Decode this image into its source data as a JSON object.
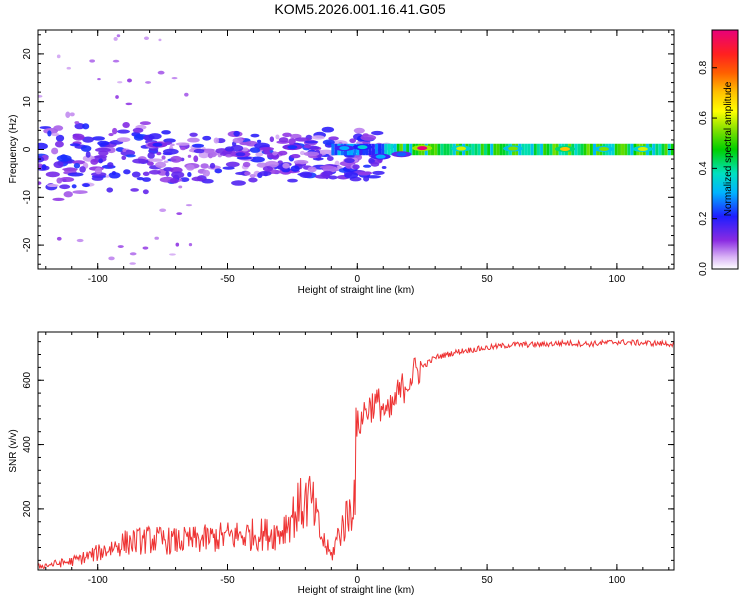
{
  "chart_data": {
    "title": "KOM5.2026.001.16.41.G05",
    "panels": [
      {
        "type": "heatmap",
        "xlabel": "Height of straight line (km)",
        "ylabel": "Frequency (Hz)",
        "xlim": [
          -123,
          122
        ],
        "ylim": [
          -25,
          25
        ],
        "xticks": [
          -100,
          -50,
          0,
          50,
          100
        ],
        "yticks": [
          -20,
          -10,
          0,
          10,
          20
        ],
        "colorbar": {
          "label": "Normalized spectral amplitude",
          "range": [
            0,
            0.95
          ],
          "ticks": [
            0.0,
            0.2,
            0.4,
            0.6,
            0.8
          ]
        },
        "blobs": [
          {
            "x": 25,
            "y": 0.3,
            "a": 0.95
          },
          {
            "x": 40,
            "y": 0.2,
            "a": 0.6
          },
          {
            "x": 60,
            "y": 0.2,
            "a": 0.55
          },
          {
            "x": 80,
            "y": 0.1,
            "a": 0.7
          },
          {
            "x": 95,
            "y": 0.1,
            "a": 0.55
          },
          {
            "x": 110,
            "y": 0.1,
            "a": 0.6
          },
          {
            "x": 2,
            "y": 0.5,
            "a": 0.35
          },
          {
            "x": -5,
            "y": 0.3,
            "a": 0.3
          },
          {
            "x": 9,
            "y": -1.5,
            "a": 0.3
          },
          {
            "x": 17,
            "y": -1,
            "a": 0.25
          },
          {
            "x": -25,
            "y": 0.5,
            "a": 0.22
          },
          {
            "x": -77,
            "y": 1,
            "a": 0.2
          },
          {
            "x": -45,
            "y": -1,
            "a": 0.18
          }
        ]
      },
      {
        "type": "line",
        "xlabel": "Height of straight line (km)",
        "ylabel": "SNR (v/v)",
        "xlim": [
          -123,
          122
        ],
        "ylim": [
          10,
          750
        ],
        "xticks": [
          -100,
          -50,
          0,
          50,
          100
        ],
        "yticks": [
          200,
          400,
          600
        ],
        "color": "#ee3333",
        "series": [
          {
            "name": "SNR",
            "x": [
              -123,
              -110,
              -100,
              -90,
              -80,
              -70,
              -60,
              -50,
              -40,
              -30,
              -22,
              -18,
              -14,
              -10,
              -7,
              -3,
              -1,
              0,
              3,
              6,
              9,
              12,
              15,
              20,
              25,
              30,
              40,
              50,
              60,
              70,
              80,
              90,
              100,
              110,
              122
            ],
            "y": [
              20,
              35,
              60,
              90,
              100,
              95,
              100,
              110,
              115,
              120,
              200,
              220,
              110,
              50,
              120,
              180,
              250,
              450,
              500,
              520,
              520,
              480,
              540,
              600,
              640,
              670,
              690,
              700,
              710,
              710,
              715,
              712,
              718,
              715,
              712
            ]
          }
        ]
      }
    ]
  }
}
